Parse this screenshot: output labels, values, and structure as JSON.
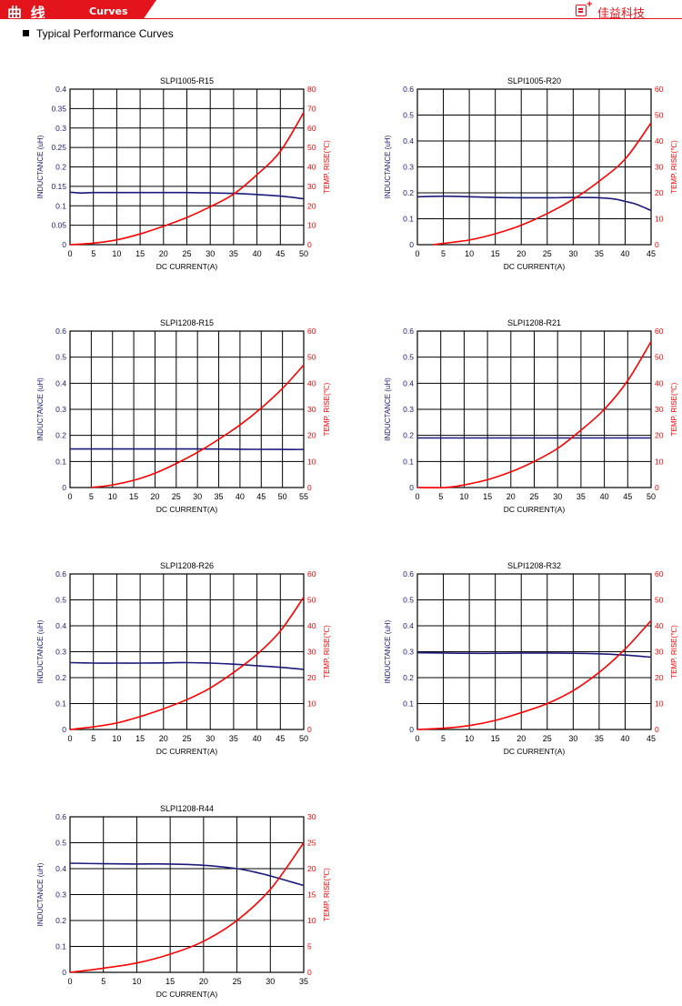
{
  "header": {
    "title_cn": "曲 线",
    "title_en": "Curves",
    "company": "佳益科技"
  },
  "section": {
    "title": "Typical Performance Curves"
  },
  "colors": {
    "accent": "#e4141c",
    "inductance": "#1a1a7a",
    "temperature": "#ff0000",
    "grid": "#000000"
  },
  "chart_data": [
    {
      "type": "line",
      "title": "SLPI1005-R15",
      "xlabel": "DC CURRENT(A)",
      "ylabel": "INDUCTANCE (uH)",
      "ylabel_right": "TEMP. RISE(℃)",
      "xlim": [
        0,
        50
      ],
      "ylim": [
        0,
        0.4
      ],
      "ylim_right": [
        0,
        80
      ],
      "x_ticks": [
        "0",
        "5",
        "10",
        "15",
        "20",
        "25",
        "30",
        "35",
        "40",
        "45",
        "50"
      ],
      "y_ticks": [
        "0",
        "0.05",
        "0.1",
        "0.15",
        "0.2",
        "0.25",
        "0.3",
        "0.35",
        "0.4"
      ],
      "y_ticks_right": [
        "0",
        "10",
        "20",
        "30",
        "40",
        "50",
        "60",
        "70",
        "80"
      ],
      "grid": true,
      "series": [
        {
          "axis": "left",
          "x": [
            0,
            2,
            3,
            5,
            10,
            15,
            20,
            25,
            30,
            35,
            40,
            45,
            50
          ],
          "y": [
            0.135,
            0.133,
            0.133,
            0.134,
            0.134,
            0.134,
            0.134,
            0.134,
            0.133,
            0.132,
            0.129,
            0.125,
            0.118
          ]
        },
        {
          "axis": "right",
          "x": [
            0,
            5,
            10,
            15,
            20,
            25,
            30,
            35,
            40,
            45,
            50
          ],
          "y": [
            0,
            0.8,
            2.5,
            5.5,
            9.5,
            14,
            19.5,
            26,
            36,
            48,
            68
          ]
        }
      ]
    },
    {
      "type": "line",
      "title": "SLPI1005-R20",
      "xlabel": "DC CURRENT(A)",
      "ylabel": "INDUCTANCE (uH)",
      "ylabel_right": "TEMP. RISE(℃)",
      "xlim": [
        0,
        45
      ],
      "ylim": [
        0,
        0.6
      ],
      "ylim_right": [
        0,
        60
      ],
      "x_ticks": [
        "0",
        "5",
        "10",
        "15",
        "20",
        "25",
        "30",
        "35",
        "40",
        "45"
      ],
      "y_ticks": [
        "0",
        "0.1",
        "0.2",
        "0.3",
        "0.4",
        "0.5",
        "0.6"
      ],
      "y_ticks_right": [
        "0",
        "10",
        "20",
        "30",
        "40",
        "50",
        "60"
      ],
      "grid": true,
      "series": [
        {
          "axis": "left",
          "x": [
            0,
            5,
            10,
            15,
            20,
            25,
            30,
            35,
            38,
            40,
            42,
            45
          ],
          "y": [
            0.185,
            0.187,
            0.185,
            0.182,
            0.181,
            0.181,
            0.182,
            0.181,
            0.176,
            0.167,
            0.157,
            0.132
          ]
        },
        {
          "axis": "right",
          "x": [
            3,
            5,
            10,
            15,
            20,
            25,
            30,
            35,
            40,
            45
          ],
          "y": [
            0,
            0.5,
            1.8,
            4.2,
            7.5,
            12,
            17.5,
            24.5,
            33,
            47
          ]
        }
      ]
    },
    {
      "type": "line",
      "title": "SLPI1208-R15",
      "xlabel": "DC CURRENT(A)",
      "ylabel": "INDUCTANCE (uH)",
      "ylabel_right": "TEMP. RISE(℃)",
      "xlim": [
        0,
        55
      ],
      "ylim": [
        0,
        0.6
      ],
      "ylim_right": [
        0,
        60
      ],
      "x_ticks": [
        "0",
        "5",
        "10",
        "15",
        "20",
        "25",
        "30",
        "35",
        "40",
        "45",
        "50",
        "55"
      ],
      "y_ticks": [
        "0",
        "0.1",
        "0.2",
        "0.3",
        "0.4",
        "0.5",
        "0.6"
      ],
      "y_ticks_right": [
        "0",
        "10",
        "20",
        "30",
        "40",
        "50",
        "60"
      ],
      "grid": true,
      "series": [
        {
          "axis": "left",
          "x": [
            0,
            10,
            20,
            30,
            40,
            50,
            55
          ],
          "y": [
            0.148,
            0.148,
            0.148,
            0.148,
            0.147,
            0.146,
            0.146
          ]
        },
        {
          "axis": "right",
          "x": [
            5,
            10,
            15,
            20,
            25,
            30,
            35,
            40,
            45,
            50,
            55
          ],
          "y": [
            0,
            1,
            2.8,
            5.5,
            9.2,
            13.5,
            18.5,
            24,
            30.5,
            38,
            47
          ]
        }
      ]
    },
    {
      "type": "line",
      "title": "SLPI1208-R21",
      "xlabel": "DC CURRENT(A)",
      "ylabel": "INDUCTANCE (uH)",
      "ylabel_right": "TEMP. RISE(℃)",
      "xlim": [
        0,
        50
      ],
      "ylim": [
        0,
        0.6
      ],
      "ylim_right": [
        0,
        60
      ],
      "x_ticks": [
        "0",
        "5",
        "10",
        "15",
        "20",
        "25",
        "30",
        "35",
        "40",
        "45",
        "50"
      ],
      "y_ticks": [
        "0",
        "0.1",
        "0.2",
        "0.3",
        "0.4",
        "0.5",
        "0.6"
      ],
      "y_ticks_right": [
        "0",
        "10",
        "20",
        "30",
        "40",
        "50",
        "60"
      ],
      "grid": true,
      "series": [
        {
          "axis": "left",
          "x": [
            0,
            10,
            20,
            30,
            40,
            50
          ],
          "y": [
            0.19,
            0.19,
            0.19,
            0.19,
            0.19,
            0.19
          ]
        },
        {
          "axis": "right",
          "x": [
            0,
            6,
            10,
            15,
            20,
            25,
            30,
            35,
            40,
            45,
            50
          ],
          "y": [
            0,
            0,
            1,
            3,
            6,
            10,
            15,
            22,
            30,
            41,
            56
          ]
        }
      ]
    },
    {
      "type": "line",
      "title": "SLPI1208-R26",
      "xlabel": "DC CURRENT(A)",
      "ylabel": "INDUCTANCE (uH)",
      "ylabel_right": "TEMP. RISE(℃)",
      "xlim": [
        0,
        50
      ],
      "ylim": [
        0,
        0.6
      ],
      "ylim_right": [
        0,
        60
      ],
      "x_ticks": [
        "0",
        "5",
        "10",
        "15",
        "20",
        "25",
        "30",
        "35",
        "40",
        "45",
        "50"
      ],
      "y_ticks": [
        "0",
        "0.1",
        "0.2",
        "0.3",
        "0.4",
        "0.5",
        "0.6"
      ],
      "y_ticks_right": [
        "0",
        "10",
        "20",
        "30",
        "40",
        "50",
        "60"
      ],
      "grid": true,
      "series": [
        {
          "axis": "left",
          "x": [
            0,
            5,
            10,
            15,
            20,
            25,
            30,
            35,
            40,
            45,
            50
          ],
          "y": [
            0.258,
            0.256,
            0.256,
            0.256,
            0.257,
            0.258,
            0.256,
            0.252,
            0.246,
            0.24,
            0.232
          ]
        },
        {
          "axis": "right",
          "x": [
            0,
            5,
            10,
            15,
            20,
            25,
            30,
            35,
            40,
            45,
            50
          ],
          "y": [
            0,
            1,
            2.5,
            5,
            8,
            11.5,
            16,
            22,
            29,
            38,
            51
          ]
        }
      ]
    },
    {
      "type": "line",
      "title": "SLPI1208-R32",
      "xlabel": "DC CURRENT(A)",
      "ylabel": "INDUCTANCE (uH)",
      "ylabel_right": "TEMP. RISE(℃)",
      "xlim": [
        0,
        45
      ],
      "ylim": [
        0,
        0.6
      ],
      "ylim_right": [
        0,
        60
      ],
      "x_ticks": [
        "0",
        "5",
        "10",
        "15",
        "20",
        "25",
        "30",
        "35",
        "40",
        "45"
      ],
      "y_ticks": [
        "0",
        "0.1",
        "0.2",
        "0.3",
        "0.4",
        "0.5",
        "0.6"
      ],
      "y_ticks_right": [
        "0",
        "10",
        "20",
        "30",
        "40",
        "50",
        "60"
      ],
      "grid": true,
      "series": [
        {
          "axis": "left",
          "x": [
            0,
            5,
            10,
            15,
            20,
            25,
            30,
            35,
            40,
            45
          ],
          "y": [
            0.296,
            0.295,
            0.294,
            0.294,
            0.295,
            0.295,
            0.294,
            0.292,
            0.287,
            0.279
          ]
        },
        {
          "axis": "right",
          "x": [
            0,
            5,
            10,
            15,
            20,
            25,
            30,
            35,
            40,
            45
          ],
          "y": [
            0,
            0.5,
            1.5,
            3.5,
            6.5,
            10,
            15,
            22,
            31,
            42
          ]
        }
      ]
    },
    {
      "type": "line",
      "title": "SLPI1208-R44",
      "xlabel": "DC CURRENT(A)",
      "ylabel": "INDUCTANCE (uH)",
      "ylabel_right": "TEMP. RISE(℃)",
      "xlim": [
        0,
        35
      ],
      "ylim": [
        0,
        0.6
      ],
      "ylim_right": [
        0,
        30
      ],
      "x_ticks": [
        "0",
        "5",
        "10",
        "15",
        "20",
        "25",
        "30",
        "35"
      ],
      "y_ticks": [
        "0",
        "0.1",
        "0.2",
        "0.3",
        "0.4",
        "0.5",
        "0.6"
      ],
      "y_ticks_right": [
        "0",
        "5",
        "10",
        "15",
        "20",
        "25",
        "30"
      ],
      "grid": true,
      "series": [
        {
          "axis": "left",
          "x": [
            0,
            5,
            10,
            15,
            20,
            25,
            28,
            30,
            33,
            35
          ],
          "y": [
            0.421,
            0.419,
            0.418,
            0.418,
            0.413,
            0.4,
            0.385,
            0.372,
            0.35,
            0.335
          ]
        },
        {
          "axis": "right",
          "x": [
            0,
            5,
            10,
            15,
            20,
            25,
            30,
            35
          ],
          "y": [
            0,
            0.8,
            1.8,
            3.5,
            6,
            10,
            16,
            25
          ]
        }
      ]
    }
  ]
}
